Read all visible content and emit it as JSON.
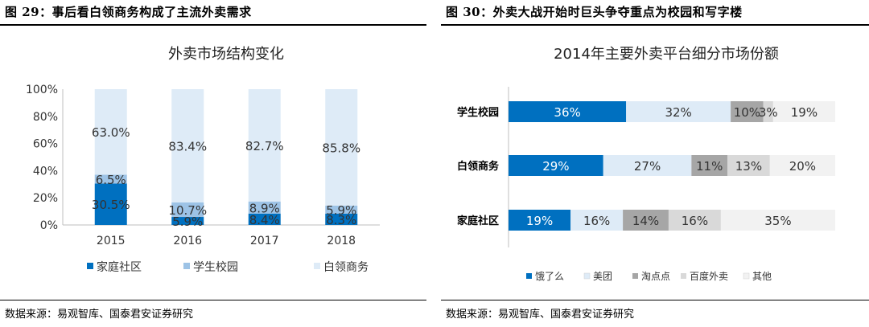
{
  "left": {
    "figure_title": "图 29：事后看白领商务构成了主流外卖需求",
    "source": "数据来源：易观智库、国泰君安证券研究"
  },
  "right": {
    "figure_title": "图 30：外卖大战开始时巨头争夺重点为校园和写字楼",
    "source": "数据来源：易观智库、国泰君安证券研究"
  },
  "chart_data": [
    {
      "type": "bar",
      "stacked": true,
      "orientation": "vertical",
      "title": "外卖市场结构变化",
      "categories": [
        "2015",
        "2016",
        "2017",
        "2018"
      ],
      "ylim": [
        0,
        100
      ],
      "yticks": [
        "0%",
        "20%",
        "40%",
        "60%",
        "80%",
        "100%"
      ],
      "series": [
        {
          "name": "家庭社区",
          "values": [
            30.5,
            5.9,
            8.4,
            8.3
          ],
          "labels": [
            "30.5%",
            "5.9%",
            "8.4%",
            "8.3%"
          ],
          "color": "#0070c0"
        },
        {
          "name": "学生校园",
          "values": [
            6.5,
            10.7,
            8.9,
            5.9
          ],
          "labels": [
            "6.5%",
            "10.7%",
            "8.9%",
            "5.9%"
          ],
          "color": "#9dc3e6"
        },
        {
          "name": "白领商务",
          "values": [
            63.0,
            83.4,
            82.7,
            85.8
          ],
          "labels": [
            "63.0%",
            "83.4%",
            "82.7%",
            "85.8%"
          ],
          "color": "#deebf7"
        }
      ],
      "legend_position": "bottom"
    },
    {
      "type": "bar",
      "stacked": true,
      "orientation": "horizontal",
      "title": "2014年主要外卖平台细分市场份额",
      "categories": [
        "学生校园",
        "白领商务",
        "家庭社区"
      ],
      "xlim": [
        0,
        100
      ],
      "series": [
        {
          "name": "饿了么",
          "values": [
            36,
            29,
            19
          ],
          "labels": [
            "36%",
            "29%",
            "19%"
          ],
          "color": "#0070c0"
        },
        {
          "name": "美团",
          "values": [
            32,
            27,
            16
          ],
          "labels": [
            "32%",
            "27%",
            "16%"
          ],
          "color": "#deebf7"
        },
        {
          "name": "淘点点",
          "values": [
            10,
            11,
            14
          ],
          "labels": [
            "10%",
            "11%",
            "14%"
          ],
          "color": "#a6a6a6"
        },
        {
          "name": "百度外卖",
          "values": [
            3,
            13,
            16
          ],
          "labels": [
            "3%",
            "13%",
            "16%"
          ],
          "color": "#d9d9d9"
        },
        {
          "name": "其他",
          "values": [
            19,
            20,
            35
          ],
          "labels": [
            "19%",
            "20%",
            "35%"
          ],
          "color": "#f2f2f2"
        }
      ],
      "legend_position": "bottom"
    }
  ]
}
